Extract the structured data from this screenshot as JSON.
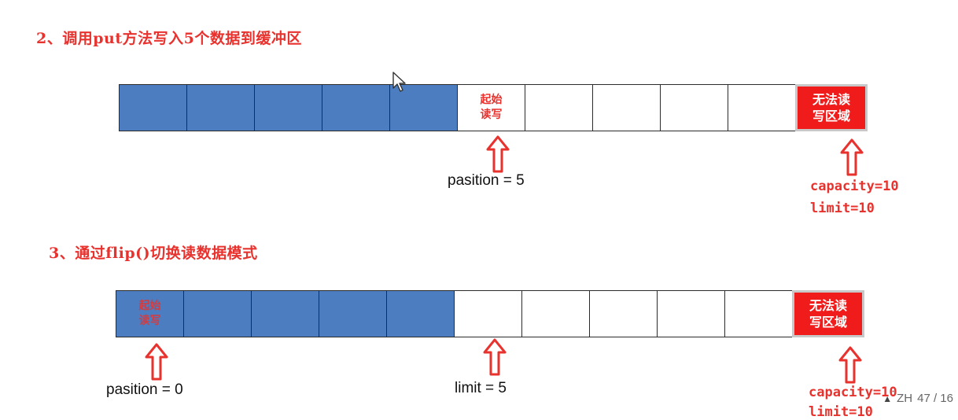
{
  "step2": {
    "title": "2、调用put方法写入5个数据到缓冲区",
    "cells": [
      {
        "state": "filled",
        "label": ""
      },
      {
        "state": "filled",
        "label": ""
      },
      {
        "state": "filled",
        "label": ""
      },
      {
        "state": "filled",
        "label": ""
      },
      {
        "state": "filled",
        "label": ""
      },
      {
        "state": "empty",
        "label": "起始\n读写"
      },
      {
        "state": "empty",
        "label": ""
      },
      {
        "state": "empty",
        "label": ""
      },
      {
        "state": "empty",
        "label": ""
      },
      {
        "state": "empty",
        "label": ""
      },
      {
        "state": "forbidden",
        "label": "无法读\n写区域"
      }
    ],
    "position_label": "pasition = 5",
    "capacity_label": "capacity=10",
    "limit_label": "limit=10"
  },
  "step3": {
    "title": "3、通过flip()切换读数据模式",
    "cells": [
      {
        "state": "filled",
        "label": "起始\n读写"
      },
      {
        "state": "filled",
        "label": ""
      },
      {
        "state": "filled",
        "label": ""
      },
      {
        "state": "filled",
        "label": ""
      },
      {
        "state": "filled",
        "label": ""
      },
      {
        "state": "empty",
        "label": ""
      },
      {
        "state": "empty",
        "label": ""
      },
      {
        "state": "empty",
        "label": ""
      },
      {
        "state": "empty",
        "label": ""
      },
      {
        "state": "empty",
        "label": ""
      },
      {
        "state": "forbidden",
        "label": "无法读\n写区域"
      }
    ],
    "position_label": "pasition = 0",
    "limit_label": "limit = 5",
    "capacity_label": "capacity=10",
    "limit_label_right": "limit=10"
  },
  "colors": {
    "filled": "#4b7dc0",
    "forbidden": "#f01c1c",
    "accent": "#e8322e"
  },
  "viewer": {
    "icon": "warning-icon",
    "zoom_text": "ZH",
    "page_indicator": "47 / 16"
  }
}
